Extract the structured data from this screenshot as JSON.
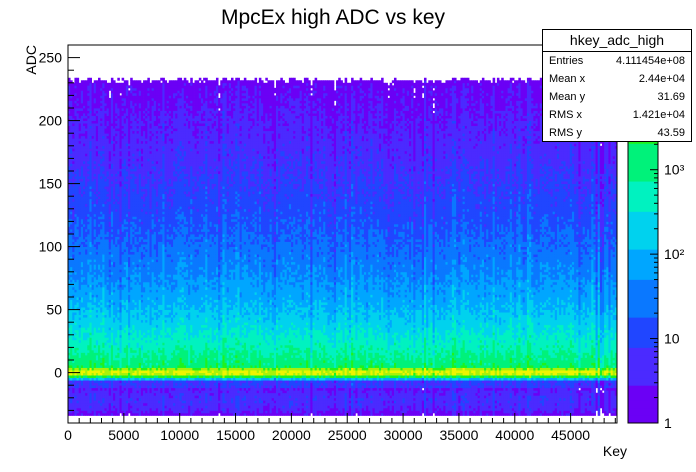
{
  "chart_data": {
    "type": "heatmap",
    "title": "MpcEx high ADC vs key",
    "xlabel": "Key",
    "ylabel": "ADC",
    "xlim": [
      0,
      49152
    ],
    "ylim": [
      -40,
      260
    ],
    "x_ticks": [
      0,
      5000,
      10000,
      15000,
      20000,
      25000,
      30000,
      35000,
      40000,
      45000
    ],
    "y_ticks": [
      0,
      50,
      100,
      150,
      200,
      250
    ],
    "z_scale": "log",
    "z_ticks": [
      {
        "label": "1",
        "value": 1
      },
      {
        "label": "10",
        "value": 10
      },
      {
        "label": "10²",
        "value": 100
      },
      {
        "label": "10³",
        "value": 1000
      }
    ],
    "z_max": 30000,
    "palette": [
      "#6b00f5",
      "#4b2aff",
      "#2046ff",
      "#0a78ff",
      "#00a6ff",
      "#00d2ee",
      "#00f2c0",
      "#00f27a",
      "#1ef21e",
      "#a6f20a",
      "#eef500"
    ],
    "stats_box": {
      "name": "hkey_adc_high",
      "rows": [
        {
          "key": "Entries",
          "value": "4.111454e+08"
        },
        {
          "key": "Mean x",
          "value": "2.44e+04"
        },
        {
          "key": "Mean y",
          "value": "31.69"
        },
        {
          "key": "RMS x",
          "value": "1.421e+04"
        },
        {
          "key": "RMS y",
          "value": "43.59"
        }
      ]
    }
  }
}
